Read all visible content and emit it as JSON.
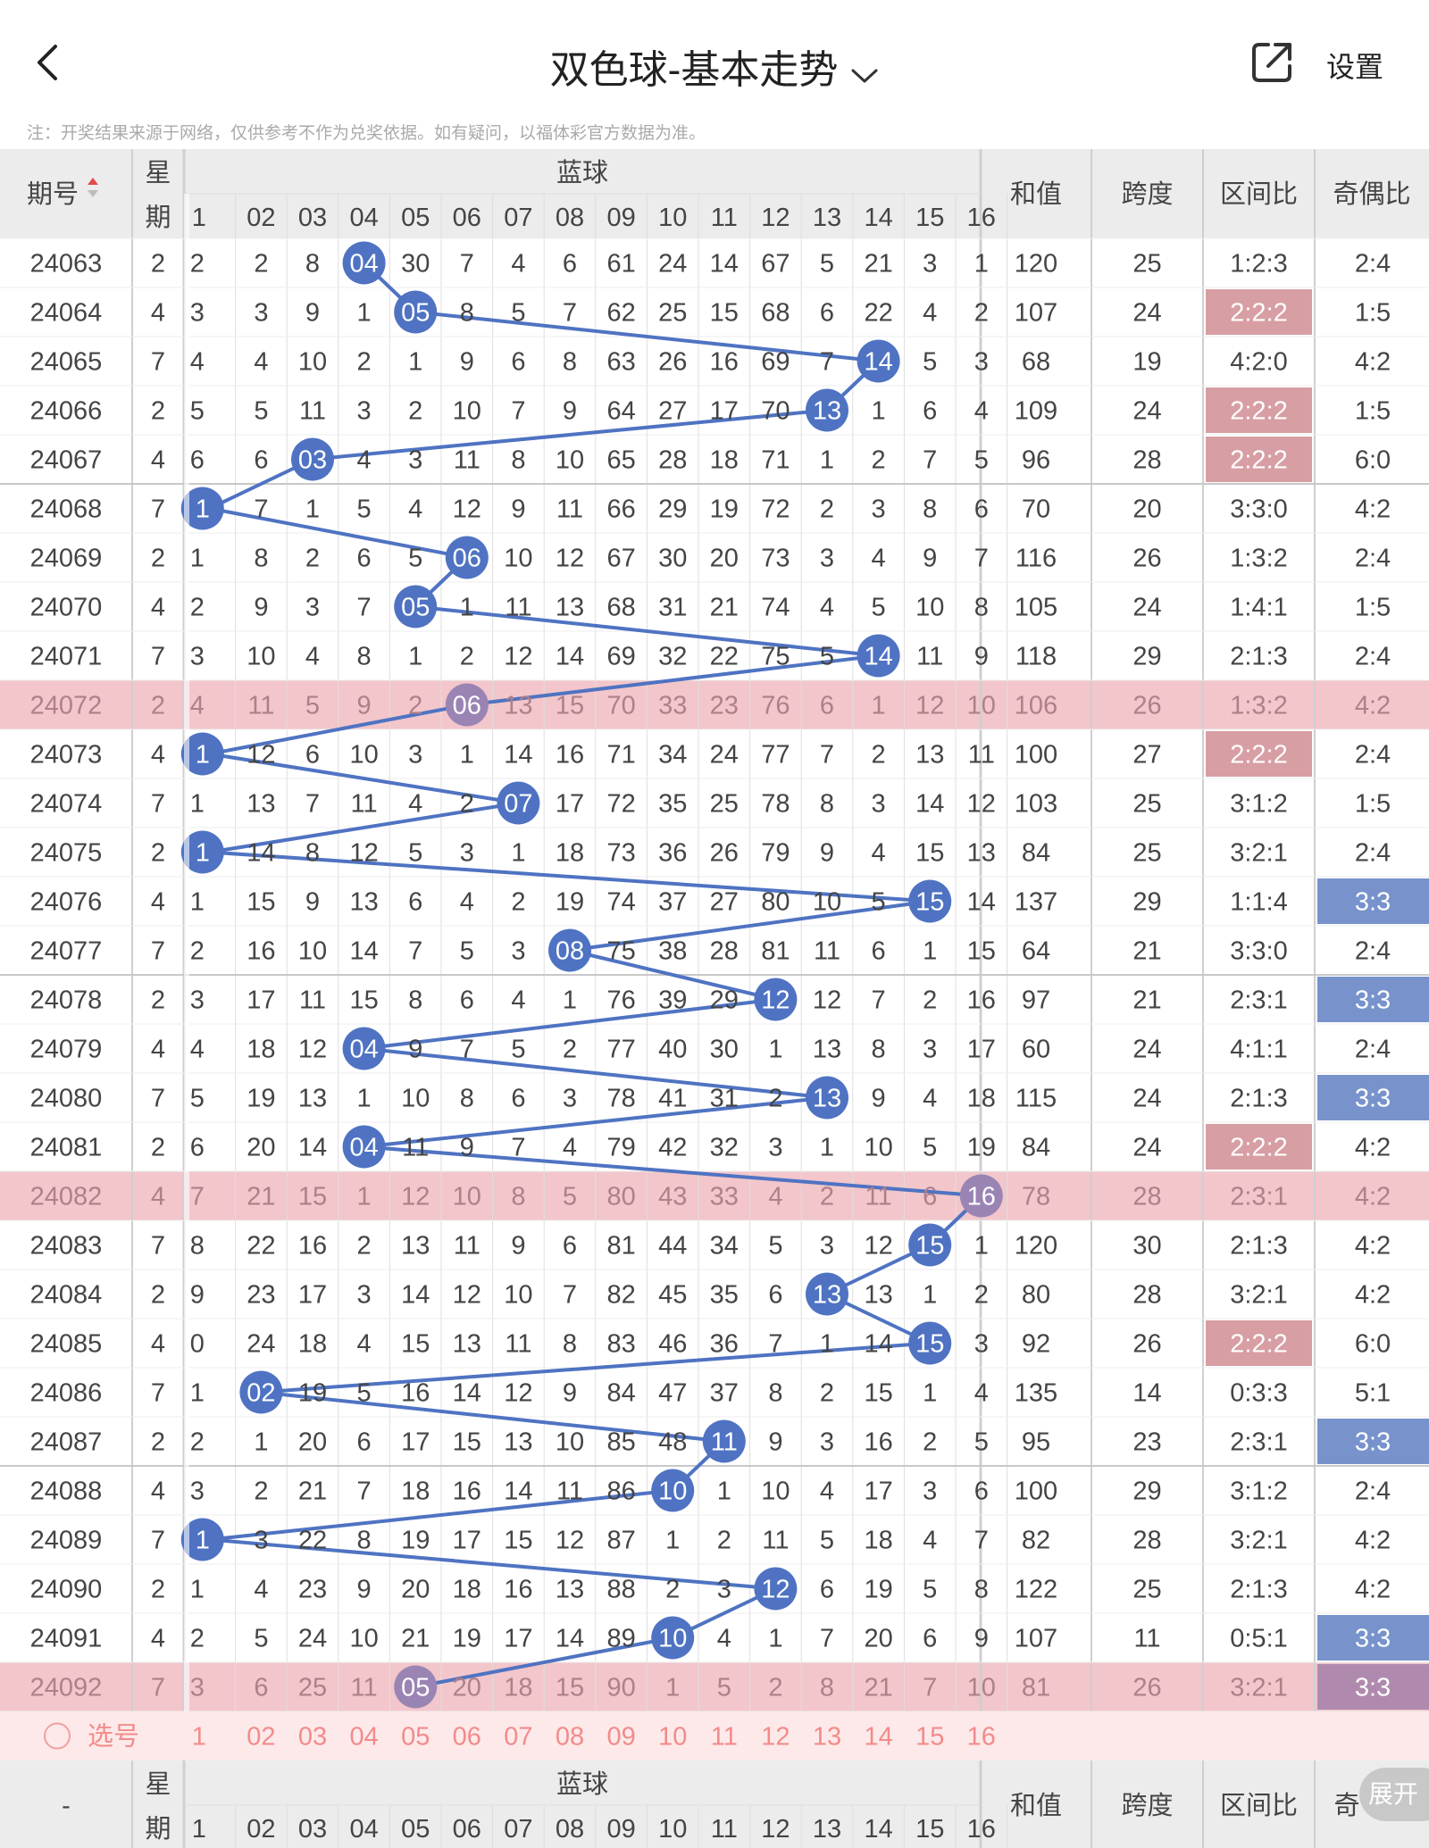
{
  "header": {
    "title": "双色球-基本走势",
    "settings_label": "设置"
  },
  "notice": "注：开奖结果来源于网络，仅供参考不作为兑奖依据。如有疑问，以福体彩官方数据为准。",
  "table": {
    "col_period": "期号",
    "col_week_top": "星",
    "col_week_bottom": "期",
    "col_blue": "蓝球",
    "blue_columns": [
      "1",
      "02",
      "03",
      "04",
      "05",
      "06",
      "07",
      "08",
      "09",
      "10",
      "11",
      "12",
      "13",
      "14",
      "15",
      "16"
    ],
    "col_sum": "和值",
    "col_span": "跨度",
    "col_zone": "区间比",
    "col_oddeven": "奇偶比",
    "select_label": "选号",
    "footer_period": "-",
    "footer_oddeven_partial": "奇",
    "expand_label": "展开",
    "rows": [
      {
        "period": "24063",
        "week": "2",
        "cells": [
          "2",
          "2",
          "8",
          "04",
          "30",
          "7",
          "4",
          "6",
          "61",
          "24",
          "14",
          "67",
          "5",
          "21",
          "3",
          "1"
        ],
        "ball": 4,
        "sum": "120",
        "span": "25",
        "zone": "1:2:3",
        "oe": "2:4"
      },
      {
        "period": "24064",
        "week": "4",
        "cells": [
          "3",
          "3",
          "9",
          "1",
          "05",
          "8",
          "5",
          "7",
          "62",
          "25",
          "15",
          "68",
          "6",
          "22",
          "4",
          "2"
        ],
        "ball": 5,
        "sum": "107",
        "span": "24",
        "zone": "2:2:2",
        "oe": "1:5",
        "zoneHi": true
      },
      {
        "period": "24065",
        "week": "7",
        "cells": [
          "4",
          "4",
          "10",
          "2",
          "1",
          "9",
          "6",
          "8",
          "63",
          "26",
          "16",
          "69",
          "7",
          "14",
          "5",
          "3"
        ],
        "ball": 14,
        "sum": "68",
        "span": "19",
        "zone": "4:2:0",
        "oe": "4:2"
      },
      {
        "period": "24066",
        "week": "2",
        "cells": [
          "5",
          "5",
          "11",
          "3",
          "2",
          "10",
          "7",
          "9",
          "64",
          "27",
          "17",
          "70",
          "13",
          "1",
          "6",
          "4"
        ],
        "ball": 13,
        "sum": "109",
        "span": "24",
        "zone": "2:2:2",
        "oe": "1:5",
        "zoneHi": true
      },
      {
        "period": "24067",
        "week": "4",
        "cells": [
          "6",
          "6",
          "03",
          "4",
          "3",
          "11",
          "8",
          "10",
          "65",
          "28",
          "18",
          "71",
          "1",
          "2",
          "7",
          "5"
        ],
        "ball": 3,
        "sum": "96",
        "span": "28",
        "zone": "2:2:2",
        "oe": "6:0",
        "zoneHi": true
      },
      {
        "period": "24068",
        "week": "7",
        "cells": [
          "1",
          "7",
          "1",
          "5",
          "4",
          "12",
          "9",
          "11",
          "66",
          "29",
          "19",
          "72",
          "2",
          "3",
          "8",
          "6"
        ],
        "ball": 1,
        "sum": "70",
        "span": "20",
        "zone": "3:3:0",
        "oe": "4:2",
        "sep": true
      },
      {
        "period": "24069",
        "week": "2",
        "cells": [
          "1",
          "8",
          "2",
          "6",
          "5",
          "06",
          "10",
          "12",
          "67",
          "30",
          "20",
          "73",
          "3",
          "4",
          "9",
          "7"
        ],
        "ball": 6,
        "sum": "116",
        "span": "26",
        "zone": "1:3:2",
        "oe": "2:4"
      },
      {
        "period": "24070",
        "week": "4",
        "cells": [
          "2",
          "9",
          "3",
          "7",
          "05",
          "1",
          "11",
          "13",
          "68",
          "31",
          "21",
          "74",
          "4",
          "5",
          "10",
          "8"
        ],
        "ball": 5,
        "sum": "105",
        "span": "24",
        "zone": "1:4:1",
        "oe": "1:5"
      },
      {
        "period": "24071",
        "week": "7",
        "cells": [
          "3",
          "10",
          "4",
          "8",
          "1",
          "2",
          "12",
          "14",
          "69",
          "32",
          "22",
          "75",
          "5",
          "14",
          "11",
          "9"
        ],
        "ball": 14,
        "sum": "118",
        "span": "29",
        "zone": "2:1:3",
        "oe": "2:4"
      },
      {
        "period": "24072",
        "week": "2",
        "cells": [
          "4",
          "11",
          "5",
          "9",
          "2",
          "06",
          "13",
          "15",
          "70",
          "33",
          "23",
          "76",
          "6",
          "1",
          "12",
          "10"
        ],
        "ball": 6,
        "sum": "106",
        "span": "26",
        "zone": "1:3:2",
        "oe": "4:2",
        "pink": true
      },
      {
        "period": "24073",
        "week": "4",
        "cells": [
          "1",
          "12",
          "6",
          "10",
          "3",
          "1",
          "14",
          "16",
          "71",
          "34",
          "24",
          "77",
          "7",
          "2",
          "13",
          "11"
        ],
        "ball": 1,
        "sum": "100",
        "span": "27",
        "zone": "2:2:2",
        "oe": "2:4",
        "zoneHi": true
      },
      {
        "period": "24074",
        "week": "7",
        "cells": [
          "1",
          "13",
          "7",
          "11",
          "4",
          "2",
          "07",
          "17",
          "72",
          "35",
          "25",
          "78",
          "8",
          "3",
          "14",
          "12"
        ],
        "ball": 7,
        "sum": "103",
        "span": "25",
        "zone": "3:1:2",
        "oe": "1:5"
      },
      {
        "period": "24075",
        "week": "2",
        "cells": [
          "1",
          "14",
          "8",
          "12",
          "5",
          "3",
          "1",
          "18",
          "73",
          "36",
          "26",
          "79",
          "9",
          "4",
          "15",
          "13"
        ],
        "ball": 1,
        "sum": "84",
        "span": "25",
        "zone": "3:2:1",
        "oe": "2:4"
      },
      {
        "period": "24076",
        "week": "4",
        "cells": [
          "1",
          "15",
          "9",
          "13",
          "6",
          "4",
          "2",
          "19",
          "74",
          "37",
          "27",
          "80",
          "10",
          "5",
          "15",
          "14"
        ],
        "ball": 15,
        "sum": "137",
        "span": "29",
        "zone": "1:1:4",
        "oe": "3:3",
        "oeHi": true
      },
      {
        "period": "24077",
        "week": "7",
        "cells": [
          "2",
          "16",
          "10",
          "14",
          "7",
          "5",
          "3",
          "08",
          "75",
          "38",
          "28",
          "81",
          "11",
          "6",
          "1",
          "15"
        ],
        "ball": 8,
        "sum": "64",
        "span": "21",
        "zone": "3:3:0",
        "oe": "2:4"
      },
      {
        "period": "24078",
        "week": "2",
        "cells": [
          "3",
          "17",
          "11",
          "15",
          "8",
          "6",
          "4",
          "1",
          "76",
          "39",
          "29",
          "12",
          "12",
          "7",
          "2",
          "16"
        ],
        "ball": 12,
        "sum": "97",
        "span": "21",
        "zone": "2:3:1",
        "oe": "3:3",
        "oeHi": true,
        "sep": true
      },
      {
        "period": "24079",
        "week": "4",
        "cells": [
          "4",
          "18",
          "12",
          "04",
          "9",
          "7",
          "5",
          "2",
          "77",
          "40",
          "30",
          "1",
          "13",
          "8",
          "3",
          "17"
        ],
        "ball": 4,
        "sum": "60",
        "span": "24",
        "zone": "4:1:1",
        "oe": "2:4"
      },
      {
        "period": "24080",
        "week": "7",
        "cells": [
          "5",
          "19",
          "13",
          "1",
          "10",
          "8",
          "6",
          "3",
          "78",
          "41",
          "31",
          "2",
          "13",
          "9",
          "4",
          "18"
        ],
        "ball": 13,
        "sum": "115",
        "span": "24",
        "zone": "2:1:3",
        "oe": "3:3",
        "oeHi": true
      },
      {
        "period": "24081",
        "week": "2",
        "cells": [
          "6",
          "20",
          "14",
          "04",
          "11",
          "9",
          "7",
          "4",
          "79",
          "42",
          "32",
          "3",
          "1",
          "10",
          "5",
          "19"
        ],
        "ball": 4,
        "sum": "84",
        "span": "24",
        "zone": "2:2:2",
        "oe": "4:2",
        "zoneHi": true
      },
      {
        "period": "24082",
        "week": "4",
        "cells": [
          "7",
          "21",
          "15",
          "1",
          "12",
          "10",
          "8",
          "5",
          "80",
          "43",
          "33",
          "4",
          "2",
          "11",
          "6",
          "16"
        ],
        "ball": 16,
        "sum": "78",
        "span": "28",
        "zone": "2:3:1",
        "oe": "4:2",
        "pink": true
      },
      {
        "period": "24083",
        "week": "7",
        "cells": [
          "8",
          "22",
          "16",
          "2",
          "13",
          "11",
          "9",
          "6",
          "81",
          "44",
          "34",
          "5",
          "3",
          "12",
          "15",
          "1"
        ],
        "ball": 15,
        "sum": "120",
        "span": "30",
        "zone": "2:1:3",
        "oe": "4:2"
      },
      {
        "period": "24084",
        "week": "2",
        "cells": [
          "9",
          "23",
          "17",
          "3",
          "14",
          "12",
          "10",
          "7",
          "82",
          "45",
          "35",
          "6",
          "13",
          "13",
          "1",
          "2"
        ],
        "ball": 13,
        "sum": "80",
        "span": "28",
        "zone": "3:2:1",
        "oe": "4:2"
      },
      {
        "period": "24085",
        "week": "4",
        "cells": [
          "0",
          "24",
          "18",
          "4",
          "15",
          "13",
          "11",
          "8",
          "83",
          "46",
          "36",
          "7",
          "1",
          "14",
          "15",
          "3"
        ],
        "ball": 15,
        "sum": "92",
        "span": "26",
        "zone": "2:2:2",
        "oe": "6:0",
        "zoneHi": true
      },
      {
        "period": "24086",
        "week": "7",
        "cells": [
          "1",
          "02",
          "19",
          "5",
          "16",
          "14",
          "12",
          "9",
          "84",
          "47",
          "37",
          "8",
          "2",
          "15",
          "1",
          "4"
        ],
        "ball": 2,
        "sum": "135",
        "span": "14",
        "zone": "0:3:3",
        "oe": "5:1"
      },
      {
        "period": "24087",
        "week": "2",
        "cells": [
          "2",
          "1",
          "20",
          "6",
          "17",
          "15",
          "13",
          "10",
          "85",
          "48",
          "11",
          "9",
          "3",
          "16",
          "2",
          "5"
        ],
        "ball": 11,
        "sum": "95",
        "span": "23",
        "zone": "2:3:1",
        "oe": "3:3",
        "oeHi": true
      },
      {
        "period": "24088",
        "week": "4",
        "cells": [
          "3",
          "2",
          "21",
          "7",
          "18",
          "16",
          "14",
          "11",
          "86",
          "10",
          "1",
          "10",
          "4",
          "17",
          "3",
          "6"
        ],
        "ball": 10,
        "sum": "100",
        "span": "29",
        "zone": "3:1:2",
        "oe": "2:4",
        "sep": true
      },
      {
        "period": "24089",
        "week": "7",
        "cells": [
          "1",
          "3",
          "22",
          "8",
          "19",
          "17",
          "15",
          "12",
          "87",
          "1",
          "2",
          "11",
          "5",
          "18",
          "4",
          "7"
        ],
        "ball": 1,
        "sum": "82",
        "span": "28",
        "zone": "3:2:1",
        "oe": "4:2"
      },
      {
        "period": "24090",
        "week": "2",
        "cells": [
          "1",
          "4",
          "23",
          "9",
          "20",
          "18",
          "16",
          "13",
          "88",
          "2",
          "3",
          "12",
          "6",
          "19",
          "5",
          "8"
        ],
        "ball": 12,
        "sum": "122",
        "span": "25",
        "zone": "2:1:3",
        "oe": "4:2"
      },
      {
        "period": "24091",
        "week": "4",
        "cells": [
          "2",
          "5",
          "24",
          "10",
          "21",
          "19",
          "17",
          "14",
          "89",
          "10",
          "4",
          "1",
          "7",
          "20",
          "6",
          "9"
        ],
        "ball": 10,
        "sum": "107",
        "span": "11",
        "zone": "0:5:1",
        "oe": "3:3",
        "oeHi": true
      },
      {
        "period": "24092",
        "week": "7",
        "cells": [
          "3",
          "6",
          "25",
          "11",
          "05",
          "20",
          "18",
          "15",
          "90",
          "1",
          "5",
          "2",
          "8",
          "21",
          "7",
          "10"
        ],
        "ball": 5,
        "sum": "81",
        "span": "26",
        "zone": "3:2:1",
        "oe": "3:3",
        "oeHi": true,
        "pink": true
      }
    ]
  },
  "colors": {
    "ball": "#4f73c2",
    "pink_row": "#f2c6cb",
    "zone_highlight": "#d79ea3",
    "oe_highlight": "#7893cc",
    "select_row": "#fde9e9",
    "header_bg": "#ececec"
  },
  "icons": {
    "back": "chevron-left-icon",
    "dropdown": "chevron-down-icon",
    "share": "share-icon",
    "radio": "radio-circle-icon"
  }
}
